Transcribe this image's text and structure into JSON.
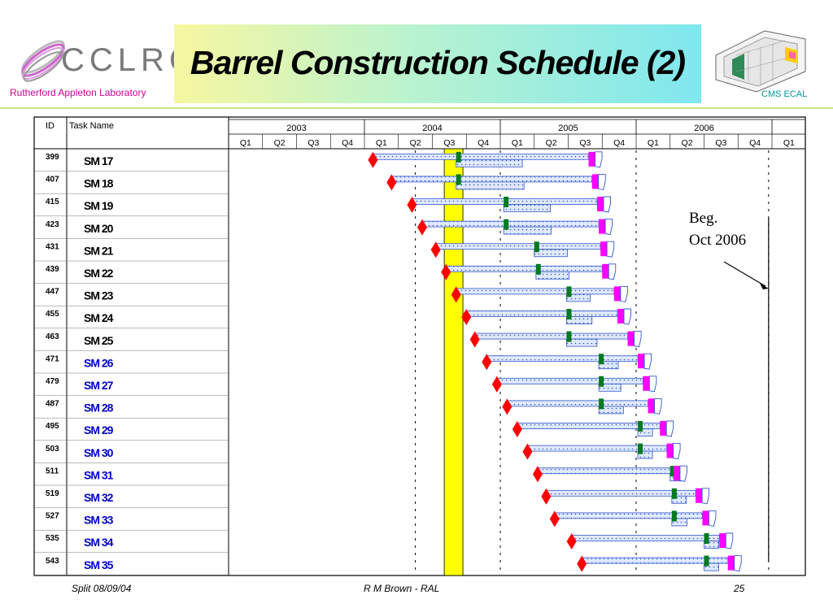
{
  "header": {
    "logo_text": "CCLRC",
    "lab_name": "Rutherford Appleton Laboratory",
    "title": "Barrel Construction Schedule (2)",
    "detector_label": "CMS ECAL"
  },
  "footer": {
    "left": "Split 08/09/04",
    "center": "R M Brown - RAL",
    "page": "25"
  },
  "annotation": {
    "line1": "Beg.",
    "line2": "Oct 2006"
  },
  "colors": {
    "start_milestone": "#ff0000",
    "bar_fill": "#cfe0ff",
    "bar_dots": "#3355cc",
    "green_marker": "#007a1f",
    "magenta_marker": "#ff00ff",
    "today_band": "#ffff00",
    "task_black": "#000000",
    "task_blue": "#0000cc"
  },
  "chart_data": {
    "type": "gantt",
    "columns": {
      "id": "ID",
      "task": "Task Name"
    },
    "years": [
      "2003",
      "2004",
      "2005",
      "2006"
    ],
    "quarters": [
      "Q1",
      "Q2",
      "Q3",
      "Q4",
      "Q1",
      "Q2",
      "Q3",
      "Q4",
      "Q1",
      "Q2",
      "Q3",
      "Q4",
      "Q1",
      "Q2",
      "Q3",
      "Q4",
      "Q1"
    ],
    "axis_range_quarters": [
      0,
      17
    ],
    "highlight_band_quarters": [
      6.35,
      6.9
    ],
    "dashed_lines_quarters": [
      5.5,
      8.0,
      12.0,
      15.9
    ],
    "annotation_line_quarter": 15.9,
    "tasks": [
      {
        "id": "399",
        "name": "SM 17",
        "color": "black",
        "start": 4.25,
        "green": 6.7,
        "magenta": 10.6,
        "end": 10.9
      },
      {
        "id": "407",
        "name": "SM 18",
        "color": "black",
        "start": 4.8,
        "green": 6.7,
        "magenta": 10.7,
        "end": 11.0
      },
      {
        "id": "415",
        "name": "SM 19",
        "color": "black",
        "start": 5.4,
        "green": 8.1,
        "magenta": 10.85,
        "end": 11.15
      },
      {
        "id": "423",
        "name": "SM 20",
        "color": "black",
        "start": 5.7,
        "green": 8.1,
        "magenta": 10.9,
        "end": 11.2
      },
      {
        "id": "431",
        "name": "SM 21",
        "color": "black",
        "start": 6.1,
        "green": 9.0,
        "magenta": 10.95,
        "end": 11.25
      },
      {
        "id": "439",
        "name": "SM 22",
        "color": "black",
        "start": 6.4,
        "green": 9.05,
        "magenta": 11.0,
        "end": 11.3
      },
      {
        "id": "447",
        "name": "SM 23",
        "color": "black",
        "start": 6.7,
        "green": 9.95,
        "magenta": 11.35,
        "end": 11.65
      },
      {
        "id": "455",
        "name": "SM 24",
        "color": "black",
        "start": 7.0,
        "green": 9.95,
        "magenta": 11.45,
        "end": 11.75
      },
      {
        "id": "463",
        "name": "SM 25",
        "color": "black",
        "start": 7.25,
        "green": 9.95,
        "magenta": 11.75,
        "end": 12.05
      },
      {
        "id": "471",
        "name": "SM 26",
        "color": "blue",
        "start": 7.6,
        "green": 10.9,
        "magenta": 12.05,
        "end": 12.35
      },
      {
        "id": "479",
        "name": "SM 27",
        "color": "blue",
        "start": 7.9,
        "green": 10.9,
        "magenta": 12.2,
        "end": 12.5
      },
      {
        "id": "487",
        "name": "SM 28",
        "color": "blue",
        "start": 8.2,
        "green": 10.9,
        "magenta": 12.35,
        "end": 12.65
      },
      {
        "id": "495",
        "name": "SM 29",
        "color": "blue",
        "start": 8.5,
        "green": 12.05,
        "magenta": 12.7,
        "end": 13.0
      },
      {
        "id": "503",
        "name": "SM 30",
        "color": "blue",
        "start": 8.8,
        "green": 12.05,
        "magenta": 12.9,
        "end": 13.2
      },
      {
        "id": "511",
        "name": "SM 31",
        "color": "blue",
        "start": 9.1,
        "green": 13.0,
        "magenta": 13.1,
        "end": 13.4
      },
      {
        "id": "519",
        "name": "SM 32",
        "color": "blue",
        "start": 9.35,
        "green": 13.05,
        "magenta": 13.75,
        "end": 14.05
      },
      {
        "id": "527",
        "name": "SM 33",
        "color": "blue",
        "start": 9.6,
        "green": 13.05,
        "magenta": 13.95,
        "end": 14.25
      },
      {
        "id": "535",
        "name": "SM 34",
        "color": "blue",
        "start": 10.1,
        "green": 14.0,
        "magenta": 14.45,
        "end": 14.75
      },
      {
        "id": "543",
        "name": "SM 35",
        "color": "blue",
        "start": 10.4,
        "green": 14.0,
        "magenta": 14.7,
        "end": 15.0
      }
    ]
  }
}
